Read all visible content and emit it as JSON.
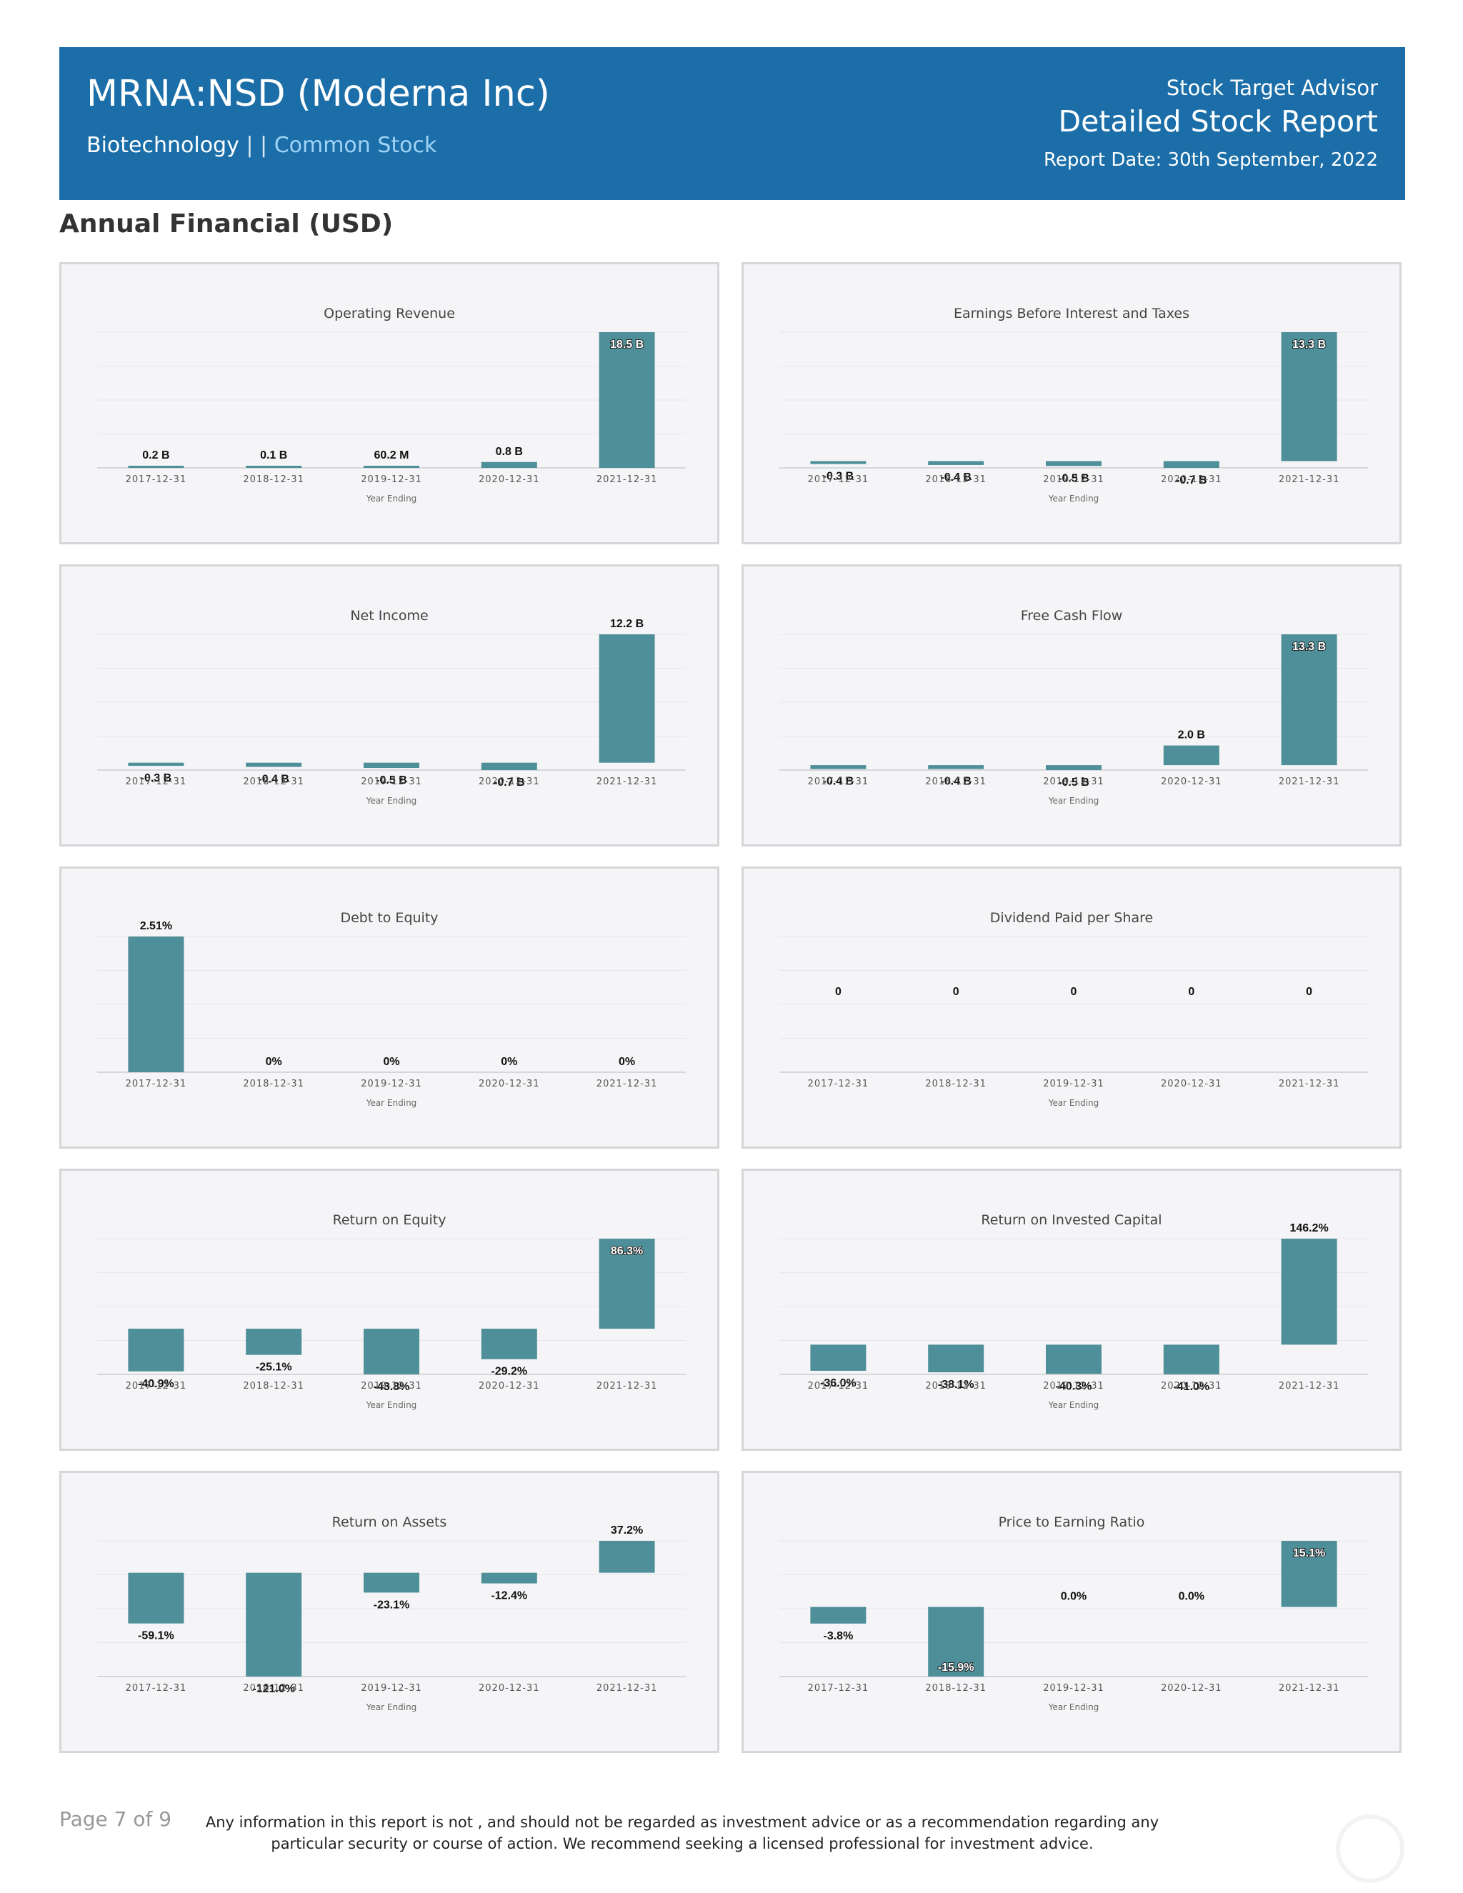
{
  "header": {
    "title": "MRNA:NSD (Moderna Inc)",
    "sector": "Biotechnology",
    "separator": " | | ",
    "stock_type": "Common Stock",
    "brand": "Stock Target Advisor",
    "report_name": "Detailed Stock Report",
    "report_date": "Report Date: 30th September, 2022"
  },
  "section_title": "Annual Financial (USD)",
  "colors": {
    "header_bg": "#1b6ea8",
    "bar": "#4e8f99",
    "panel_bg": "#f5f5f7"
  },
  "chart_data": [
    {
      "type": "bar",
      "title": "Operating Revenue",
      "xlabel": "Year Ending",
      "ylabel": "",
      "categories": [
        "2017-12-31",
        "2018-12-31",
        "2019-12-31",
        "2020-12-31",
        "2021-12-31"
      ],
      "values": [
        0.2,
        0.1,
        0.0602,
        0.8,
        18.5
      ],
      "labels": [
        "0.2 B",
        "0.1 B",
        "60.2 M",
        "0.8 B",
        "18.5 B"
      ],
      "unit": "B"
    },
    {
      "type": "bar",
      "title": "Earnings Before Interest and Taxes",
      "xlabel": "Year Ending",
      "ylabel": "",
      "categories": [
        "2017-12-31",
        "2018-12-31",
        "2019-12-31",
        "2020-12-31",
        "2021-12-31"
      ],
      "values": [
        -0.3,
        -0.4,
        -0.5,
        -0.7,
        13.3
      ],
      "labels": [
        "-0.3 B",
        "-0.4 B",
        "-0.5 B",
        "-0.7 B",
        "13.3 B"
      ],
      "unit": "B"
    },
    {
      "type": "bar",
      "title": "Net Income",
      "xlabel": "Year Ending",
      "ylabel": "",
      "categories": [
        "2017-12-31",
        "2018-12-31",
        "2019-12-31",
        "2020-12-31",
        "2021-12-31"
      ],
      "values": [
        -0.3,
        -0.4,
        -0.5,
        -0.7,
        12.2
      ],
      "labels": [
        "-0.3 B",
        "-0.4 B",
        "-0.5 B",
        "-0.7 B",
        "12.2 B"
      ],
      "unit": "B"
    },
    {
      "type": "bar",
      "title": "Free Cash Flow",
      "xlabel": "Year Ending",
      "ylabel": "",
      "categories": [
        "2017-12-31",
        "2018-12-31",
        "2019-12-31",
        "2020-12-31",
        "2021-12-31"
      ],
      "values": [
        -0.4,
        -0.4,
        -0.5,
        2.0,
        13.3
      ],
      "labels": [
        "-0.4 B",
        "-0.4 B",
        "-0.5 B",
        "2.0 B",
        "13.3 B"
      ],
      "unit": "B"
    },
    {
      "type": "bar",
      "title": "Debt to Equity",
      "xlabel": "Year Ending",
      "ylabel": "",
      "categories": [
        "2017-12-31",
        "2018-12-31",
        "2019-12-31",
        "2020-12-31",
        "2021-12-31"
      ],
      "values": [
        2.51,
        0,
        0,
        0,
        0
      ],
      "labels": [
        "2.51%",
        "0%",
        "0%",
        "0%",
        "0%"
      ],
      "unit": "%"
    },
    {
      "type": "bar",
      "title": "Dividend Paid per Share",
      "xlabel": "Year Ending",
      "ylabel": "",
      "categories": [
        "2017-12-31",
        "2018-12-31",
        "2019-12-31",
        "2020-12-31",
        "2021-12-31"
      ],
      "values": [
        0,
        0,
        0,
        0,
        0
      ],
      "labels": [
        "0",
        "0",
        "0",
        "0",
        "0"
      ],
      "unit": ""
    },
    {
      "type": "bar",
      "title": "Return on Equity",
      "xlabel": "Year Ending",
      "ylabel": "",
      "categories": [
        "2017-12-31",
        "2018-12-31",
        "2019-12-31",
        "2020-12-31",
        "2021-12-31"
      ],
      "values": [
        -40.9,
        -25.1,
        -43.8,
        -29.2,
        86.3
      ],
      "labels": [
        "-40.9%",
        "-25.1%",
        "-43.8%",
        "-29.2%",
        "86.3%"
      ],
      "unit": "%"
    },
    {
      "type": "bar",
      "title": "Return on Invested Capital",
      "xlabel": "Year Ending",
      "ylabel": "",
      "categories": [
        "2017-12-31",
        "2018-12-31",
        "2019-12-31",
        "2020-12-31",
        "2021-12-31"
      ],
      "values": [
        -36.0,
        -38.1,
        -40.3,
        -41.0,
        146.2
      ],
      "labels": [
        "-36.0%",
        "-38.1%",
        "-40.3%",
        "-41.0%",
        "146.2%"
      ],
      "unit": "%"
    },
    {
      "type": "bar",
      "title": "Return on Assets",
      "xlabel": "Year Ending",
      "ylabel": "",
      "categories": [
        "2017-12-31",
        "2018-12-31",
        "2019-12-31",
        "2020-12-31",
        "2021-12-31"
      ],
      "values": [
        -59.1,
        -121.0,
        -23.1,
        -12.4,
        37.2
      ],
      "labels": [
        "-59.1%",
        "-121.0%",
        "-23.1%",
        "-12.4%",
        "37.2%"
      ],
      "unit": "%"
    },
    {
      "type": "bar",
      "title": "Price to Earning Ratio",
      "xlabel": "Year Ending",
      "ylabel": "",
      "categories": [
        "2017-12-31",
        "2018-12-31",
        "2019-12-31",
        "2020-12-31",
        "2021-12-31"
      ],
      "values": [
        -3.8,
        -15.9,
        0.0,
        0.0,
        15.1
      ],
      "labels": [
        "-3.8%",
        "-15.9%",
        "0.0%",
        "0.0%",
        "15.1%"
      ],
      "unit": "%"
    }
  ],
  "footer": {
    "page": "Page 7 of 9",
    "disclaimer": "Any information in this report is not , and should not be regarded as investment advice or as a recommendation regarding any particular security or course of action. We recommend seeking a licensed professional for investment advice."
  }
}
